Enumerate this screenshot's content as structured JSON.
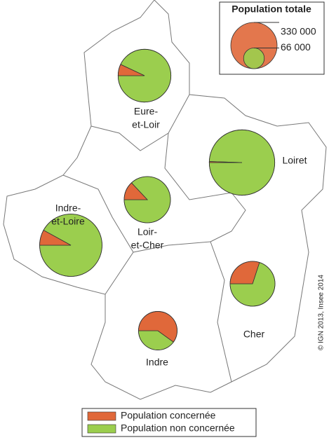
{
  "legend_title": "Population totale",
  "size_legend": [
    {
      "value": 330000,
      "label": "330 000"
    },
    {
      "value": 66000,
      "label": "66 000"
    }
  ],
  "categories": [
    {
      "name": "Population concernée",
      "color": "#e0683a"
    },
    {
      "name": "Population non concernée",
      "color": "#9bce4e"
    }
  ],
  "departments": [
    {
      "name": [
        "Eure-",
        "et-Loir"
      ],
      "population": 430000,
      "concerned": 7,
      "not_concerned": 93
    },
    {
      "name": [
        "Loiret"
      ],
      "population": 660000,
      "concerned": 0.5,
      "not_concerned": 99.5
    },
    {
      "name": [
        "Loir-",
        "et-Cher"
      ],
      "population": 330000,
      "concerned": 13,
      "not_concerned": 87
    },
    {
      "name": [
        "Indre-",
        "et-Loire"
      ],
      "population": 600000,
      "concerned": 8,
      "not_concerned": 92
    },
    {
      "name": [
        "Cher"
      ],
      "population": 310000,
      "concerned": 30,
      "not_concerned": 70
    },
    {
      "name": [
        "Indre"
      ],
      "population": 230000,
      "concerned": 60,
      "not_concerned": 40
    }
  ],
  "credit": "© IGN 2013, Insee 2014"
}
